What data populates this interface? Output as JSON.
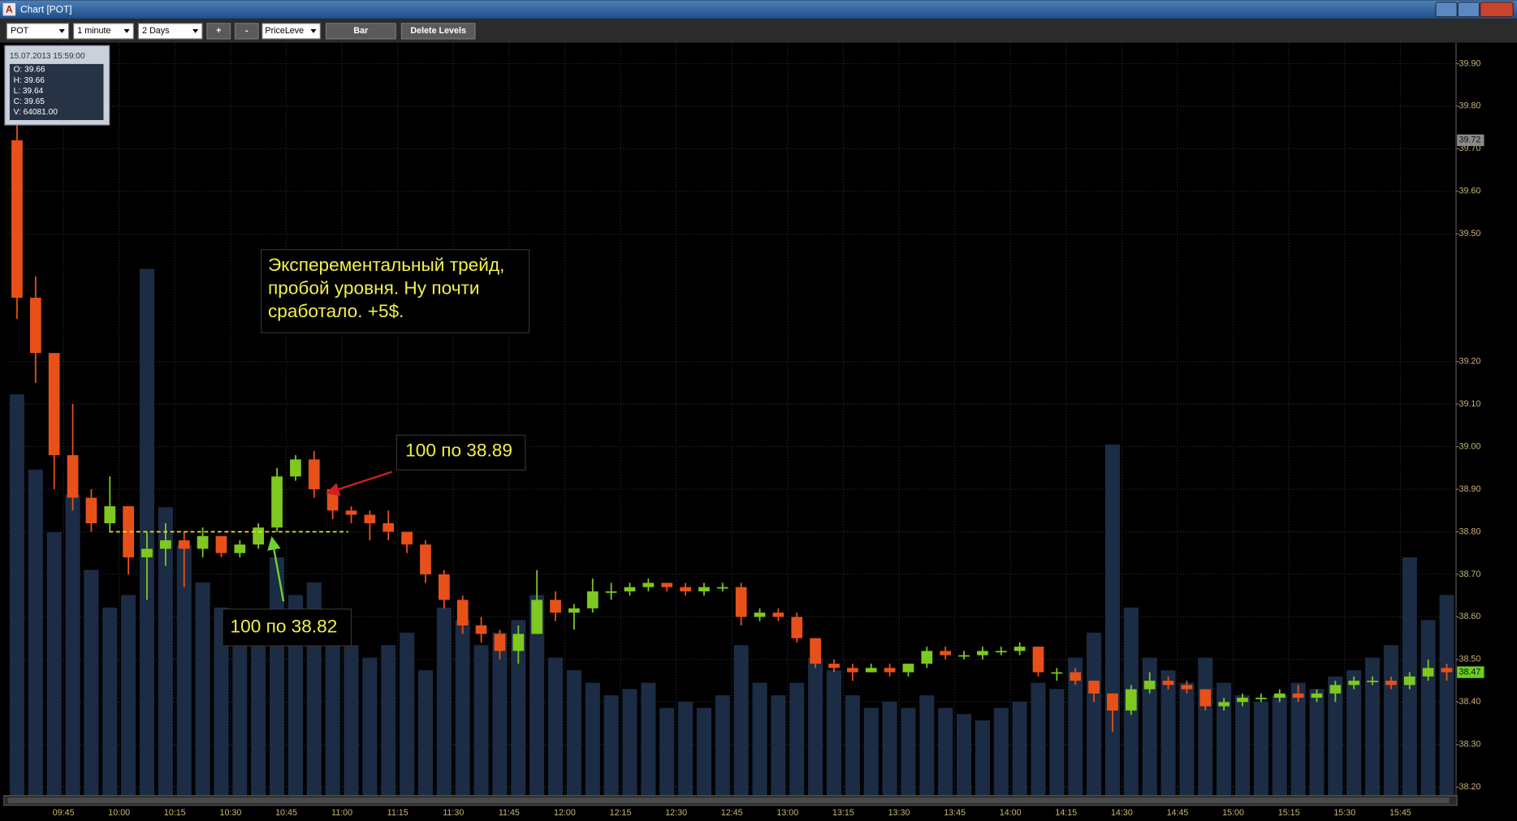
{
  "window": {
    "title": "Chart [POT]",
    "icon": "A",
    "symbol": "POT",
    "interval": "1 minute",
    "period": "2 Days",
    "zoom_in": "+",
    "zoom_out": "-",
    "tool": "PriceLeve",
    "chart_style": "Bar",
    "delete_levels": "Delete Levels"
  },
  "tooltip": {
    "datetime": "15.07.2013 15:59:00",
    "lines": [
      "O: 39.66",
      "H: 39.66",
      "L: 39.64",
      "C: 39.65",
      "V: 64081.00"
    ]
  },
  "chart_data": {
    "type": "candlestick",
    "categories": [
      null,
      null,
      null,
      "09:45",
      null,
      null,
      "10:00",
      null,
      null,
      "10:15",
      null,
      null,
      "10:30",
      null,
      null,
      "10:45",
      null,
      null,
      "11:00",
      null,
      null,
      "11:15",
      null,
      null,
      "11:30",
      null,
      null,
      "11:45",
      null,
      null,
      "12:00",
      null,
      null,
      "12:15",
      null,
      null,
      "12:30",
      null,
      null,
      "12:45",
      null,
      null,
      "13:00",
      null,
      null,
      "13:15",
      null,
      null,
      "13:30",
      null,
      null,
      "13:45",
      null,
      null,
      "14:00",
      null,
      null,
      "14:15",
      null,
      null,
      "14:30",
      null,
      null,
      "14:45",
      null,
      null,
      "15:00",
      null,
      null,
      "15:15",
      null,
      null,
      "15:30",
      null,
      null,
      "15:45",
      null,
      null
    ],
    "open": [
      39.72,
      39.35,
      39.22,
      38.98,
      38.88,
      38.82,
      38.86,
      38.74,
      38.76,
      38.78,
      38.76,
      38.79,
      38.75,
      38.77,
      38.81,
      38.93,
      38.97,
      38.9,
      38.85,
      38.84,
      38.82,
      38.8,
      38.77,
      38.7,
      38.64,
      38.58,
      38.56,
      38.52,
      38.56,
      38.64,
      38.61,
      38.62,
      38.66,
      38.66,
      38.67,
      38.68,
      38.67,
      38.66,
      38.67,
      38.67,
      38.6,
      38.61,
      38.6,
      38.55,
      38.49,
      38.48,
      38.47,
      38.48,
      38.47,
      38.49,
      38.52,
      38.51,
      38.51,
      38.52,
      38.52,
      38.53,
      38.47,
      38.47,
      38.45,
      38.42,
      38.38,
      38.43,
      38.45,
      38.44,
      38.43,
      38.39,
      38.4,
      38.41,
      38.41,
      38.42,
      38.41,
      38.42,
      38.44,
      38.45,
      38.45,
      38.44,
      38.46,
      38.48
    ],
    "high": [
      39.8,
      39.4,
      39.22,
      39.1,
      38.9,
      38.93,
      38.86,
      38.8,
      38.82,
      38.8,
      38.81,
      38.79,
      38.78,
      38.82,
      38.95,
      38.98,
      38.99,
      38.9,
      38.86,
      38.85,
      38.85,
      38.8,
      38.78,
      38.71,
      38.65,
      38.6,
      38.57,
      38.58,
      38.71,
      38.66,
      38.63,
      38.69,
      38.68,
      38.68,
      38.69,
      38.68,
      38.68,
      38.68,
      38.68,
      38.68,
      38.62,
      38.62,
      38.61,
      38.55,
      38.5,
      38.49,
      38.49,
      38.49,
      38.49,
      38.53,
      38.53,
      38.52,
      38.53,
      38.53,
      38.54,
      38.53,
      38.48,
      38.48,
      38.45,
      38.42,
      38.44,
      38.47,
      38.46,
      38.45,
      38.43,
      38.41,
      38.42,
      38.42,
      38.43,
      38.44,
      38.43,
      38.45,
      38.46,
      38.46,
      38.46,
      38.47,
      38.5,
      38.49
    ],
    "low": [
      39.3,
      39.15,
      38.9,
      38.85,
      38.8,
      38.8,
      38.7,
      38.64,
      38.72,
      38.67,
      38.74,
      38.74,
      38.74,
      38.76,
      38.8,
      38.92,
      38.88,
      38.83,
      38.82,
      38.78,
      38.78,
      38.75,
      38.68,
      38.62,
      38.56,
      38.54,
      38.5,
      38.49,
      38.56,
      38.59,
      38.57,
      38.61,
      38.64,
      38.65,
      38.66,
      38.66,
      38.65,
      38.65,
      38.66,
      38.58,
      38.59,
      38.59,
      38.54,
      38.48,
      38.47,
      38.45,
      38.47,
      38.46,
      38.46,
      38.48,
      38.5,
      38.5,
      38.5,
      38.51,
      38.51,
      38.46,
      38.45,
      38.44,
      38.4,
      38.33,
      38.37,
      38.42,
      38.43,
      38.42,
      38.38,
      38.38,
      38.39,
      38.4,
      38.4,
      38.4,
      38.4,
      38.4,
      38.43,
      38.44,
      38.43,
      38.43,
      38.45,
      38.45
    ],
    "close": [
      39.35,
      39.22,
      38.98,
      38.88,
      38.82,
      38.86,
      38.74,
      38.76,
      38.78,
      38.76,
      38.79,
      38.75,
      38.77,
      38.81,
      38.93,
      38.97,
      38.9,
      38.85,
      38.84,
      38.82,
      38.8,
      38.77,
      38.7,
      38.64,
      38.58,
      38.56,
      38.52,
      38.56,
      38.64,
      38.61,
      38.62,
      38.66,
      38.66,
      38.67,
      38.68,
      38.67,
      38.66,
      38.67,
      38.67,
      38.6,
      38.61,
      38.6,
      38.55,
      38.49,
      38.48,
      38.47,
      38.48,
      38.47,
      38.49,
      38.52,
      38.51,
      38.51,
      38.52,
      38.52,
      38.53,
      38.47,
      38.47,
      38.45,
      38.42,
      38.38,
      38.43,
      38.45,
      38.44,
      38.43,
      38.39,
      38.4,
      38.41,
      38.41,
      38.42,
      38.41,
      38.42,
      38.44,
      38.45,
      38.45,
      38.44,
      38.46,
      38.48,
      38.47
    ],
    "volume": [
      320000,
      260000,
      210000,
      240000,
      180000,
      150000,
      160000,
      420000,
      230000,
      200000,
      170000,
      150000,
      140000,
      130000,
      190000,
      160000,
      170000,
      140000,
      120000,
      110000,
      120000,
      130000,
      100000,
      150000,
      140000,
      120000,
      130000,
      140000,
      160000,
      110000,
      100000,
      90000,
      80000,
      85000,
      90000,
      70000,
      75000,
      70000,
      80000,
      120000,
      90000,
      80000,
      90000,
      110000,
      100000,
      80000,
      70000,
      75000,
      70000,
      80000,
      70000,
      65000,
      60000,
      70000,
      75000,
      90000,
      85000,
      110000,
      130000,
      280000,
      150000,
      110000,
      100000,
      90000,
      110000,
      90000,
      80000,
      75000,
      80000,
      90000,
      85000,
      95000,
      100000,
      110000,
      120000,
      190000,
      140000,
      160000
    ],
    "up_color": "#7ec820",
    "down_color": "#e8501a",
    "volume_color": "#1b2c44",
    "ylim": [
      38.18,
      39.94
    ],
    "yticks": [
      {
        "value": 38.2,
        "label": "38.20"
      },
      {
        "value": 38.3,
        "label": "38.30"
      },
      {
        "value": 38.4,
        "label": "38.40"
      },
      {
        "value": 38.5,
        "label": "38.50"
      },
      {
        "value": 38.6,
        "label": "38.60"
      },
      {
        "value": 38.7,
        "label": "38.70"
      },
      {
        "value": 38.8,
        "label": "38.80"
      },
      {
        "value": 38.9,
        "label": "38.90"
      },
      {
        "value": 39,
        "label": "39.00"
      },
      {
        "value": 39.1,
        "label": "39.10"
      },
      {
        "value": 39.2,
        "label": "39.20"
      },
      {
        "value": 39.5,
        "label": "39.50"
      },
      {
        "value": 39.6,
        "label": "39.60"
      },
      {
        "value": 39.7,
        "label": "39.70"
      },
      {
        "value": 39.8,
        "label": "39.80"
      },
      {
        "value": 39.9,
        "label": "39.90"
      }
    ],
    "grid": true,
    "level_line": {
      "value": 38.8,
      "color": "#e8e030"
    },
    "price_markers": [
      {
        "value": 39.72,
        "label": "39.72",
        "color": "#8a8a8a"
      },
      {
        "value": 38.47,
        "label": "38.47",
        "color": "#6ad020"
      }
    ],
    "annotations": [
      {
        "lines": [
          "Эксперементальный трейд,",
          "пробой уровня. Ну почти",
          "сработало. +5$."
        ]
      },
      {
        "text": "100 по 38.89"
      },
      {
        "text": "100 по 38.82"
      }
    ]
  }
}
